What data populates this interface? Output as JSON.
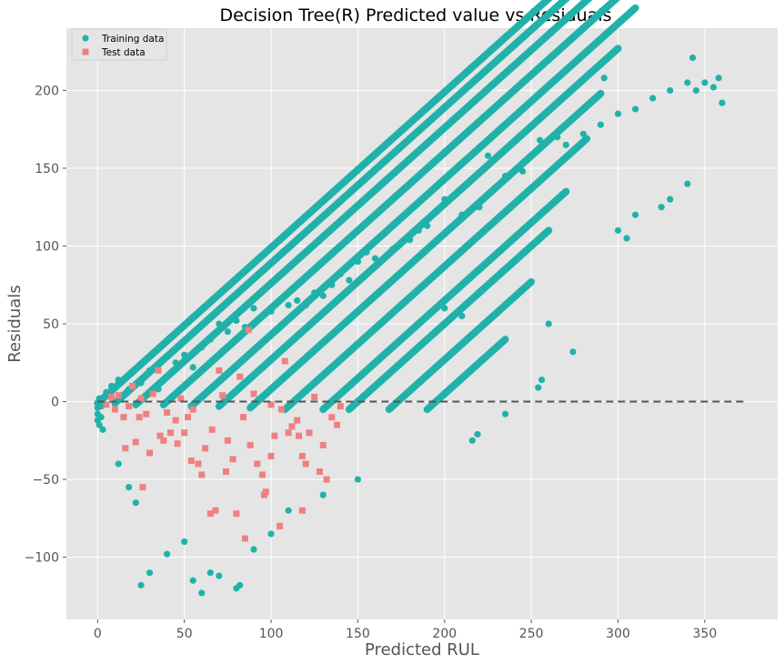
{
  "chart_data": {
    "type": "scatter",
    "title": "Decision Tree(R) Predicted value vs Residuals",
    "xlabel": "Predicted RUL",
    "ylabel": "Residuals",
    "xlim": [
      -18,
      392
    ],
    "ylim": [
      -140,
      240
    ],
    "xticks": [
      0,
      50,
      100,
      150,
      200,
      250,
      300,
      350
    ],
    "yticks": [
      -100,
      -50,
      0,
      50,
      100,
      150,
      200
    ],
    "ytick_labels": [
      "−100",
      "−50",
      "0",
      "50",
      "100",
      "150",
      "200"
    ],
    "grid": true,
    "legend_position": "top-left",
    "reference_line": {
      "y": 0,
      "x_range": [
        0,
        373
      ],
      "style": "dashed",
      "color": "#555555"
    },
    "series": [
      {
        "name": "Training data",
        "marker": "circle",
        "color": "#20b2aa",
        "bands": [
          {
            "offset": -1,
            "x_start": 0,
            "x_end": 356
          },
          {
            "offset": -11,
            "x_start": 10,
            "x_end": 344
          },
          {
            "offset": -24,
            "x_start": 22,
            "x_end": 333
          },
          {
            "offset": -40,
            "x_start": 38,
            "x_end": 323
          },
          {
            "offset": -57,
            "x_start": 54,
            "x_end": 310
          },
          {
            "offset": -73,
            "x_start": 70,
            "x_end": 300
          },
          {
            "offset": -92,
            "x_start": 88,
            "x_end": 290
          },
          {
            "offset": -113,
            "x_start": 108,
            "x_end": 282
          },
          {
            "offset": -135,
            "x_start": 130,
            "x_end": 270
          },
          {
            "offset": -150,
            "x_start": 145,
            "x_end": 260
          },
          {
            "offset": -173,
            "x_start": 168,
            "x_end": 250
          },
          {
            "offset": -195,
            "x_start": 190,
            "x_end": 235
          }
        ],
        "points": [
          [
            0,
            -8
          ],
          [
            0,
            -4
          ],
          [
            0,
            -12
          ],
          [
            1,
            -15
          ],
          [
            2,
            -3
          ],
          [
            3,
            -18
          ],
          [
            1,
            2
          ],
          [
            2,
            -10
          ],
          [
            5,
            6
          ],
          [
            8,
            10
          ],
          [
            12,
            14
          ],
          [
            18,
            8
          ],
          [
            25,
            12
          ],
          [
            30,
            20
          ],
          [
            35,
            8
          ],
          [
            40,
            16
          ],
          [
            45,
            25
          ],
          [
            50,
            30
          ],
          [
            55,
            22
          ],
          [
            60,
            35
          ],
          [
            65,
            40
          ],
          [
            70,
            50
          ],
          [
            75,
            45
          ],
          [
            80,
            52
          ],
          [
            85,
            48
          ],
          [
            90,
            60
          ],
          [
            95,
            55
          ],
          [
            100,
            58
          ],
          [
            110,
            62
          ],
          [
            115,
            65
          ],
          [
            120,
            62
          ],
          [
            125,
            70
          ],
          [
            130,
            68
          ],
          [
            135,
            75
          ],
          [
            140,
            82
          ],
          [
            145,
            78
          ],
          [
            150,
            90
          ],
          [
            155,
            96
          ],
          [
            160,
            92
          ],
          [
            170,
            98
          ],
          [
            175,
            102
          ],
          [
            180,
            104
          ],
          [
            185,
            110
          ],
          [
            190,
            113
          ],
          [
            200,
            130
          ],
          [
            210,
            120
          ],
          [
            220,
            125
          ],
          [
            225,
            158
          ],
          [
            235,
            145
          ],
          [
            245,
            148
          ],
          [
            255,
            168
          ],
          [
            265,
            170
          ],
          [
            270,
            165
          ],
          [
            280,
            172
          ],
          [
            290,
            178
          ],
          [
            300,
            185
          ],
          [
            310,
            188
          ],
          [
            320,
            195
          ],
          [
            330,
            200
          ],
          [
            340,
            205
          ],
          [
            343,
            221
          ],
          [
            345,
            200
          ],
          [
            350,
            205
          ],
          [
            355,
            202
          ],
          [
            358,
            208
          ],
          [
            360,
            192
          ],
          [
            292,
            208
          ],
          [
            25,
            -118
          ],
          [
            30,
            -110
          ],
          [
            40,
            -98
          ],
          [
            50,
            -90
          ],
          [
            55,
            -115
          ],
          [
            60,
            -123
          ],
          [
            65,
            -110
          ],
          [
            70,
            -112
          ],
          [
            80,
            -120
          ],
          [
            82,
            -118
          ],
          [
            90,
            -95
          ],
          [
            100,
            -85
          ],
          [
            110,
            -70
          ],
          [
            130,
            -60
          ],
          [
            150,
            -50
          ],
          [
            235,
            -8
          ],
          [
            254,
            9
          ],
          [
            256,
            14
          ],
          [
            274,
            32
          ],
          [
            216,
            -25
          ],
          [
            219,
            -21
          ],
          [
            340,
            140
          ],
          [
            330,
            130
          ],
          [
            325,
            125
          ],
          [
            310,
            120
          ],
          [
            300,
            110
          ],
          [
            305,
            105
          ],
          [
            200,
            60
          ],
          [
            210,
            55
          ],
          [
            260,
            50
          ],
          [
            12,
            -40
          ],
          [
            18,
            -55
          ],
          [
            22,
            -65
          ]
        ]
      },
      {
        "name": "Test data",
        "marker": "square",
        "color": "#f08080",
        "points": [
          [
            5,
            -2
          ],
          [
            8,
            3
          ],
          [
            10,
            -5
          ],
          [
            12,
            4
          ],
          [
            15,
            -10
          ],
          [
            18,
            -3
          ],
          [
            20,
            10
          ],
          [
            22,
            -26
          ],
          [
            25,
            2
          ],
          [
            28,
            -8
          ],
          [
            30,
            -33
          ],
          [
            32,
            5
          ],
          [
            35,
            20
          ],
          [
            38,
            -25
          ],
          [
            40,
            -7
          ],
          [
            45,
            -12
          ],
          [
            48,
            2
          ],
          [
            50,
            -20
          ],
          [
            52,
            -10
          ],
          [
            55,
            -5
          ],
          [
            58,
            -40
          ],
          [
            60,
            -47
          ],
          [
            62,
            -30
          ],
          [
            65,
            -72
          ],
          [
            68,
            -70
          ],
          [
            70,
            20
          ],
          [
            72,
            4
          ],
          [
            75,
            -25
          ],
          [
            78,
            -37
          ],
          [
            80,
            -72
          ],
          [
            82,
            16
          ],
          [
            85,
            -88
          ],
          [
            87,
            46
          ],
          [
            90,
            5
          ],
          [
            92,
            -40
          ],
          [
            95,
            -47
          ],
          [
            97,
            -58
          ],
          [
            100,
            -2
          ],
          [
            102,
            -22
          ],
          [
            105,
            -80
          ],
          [
            108,
            26
          ],
          [
            110,
            -20
          ],
          [
            112,
            -16
          ],
          [
            115,
            -12
          ],
          [
            118,
            -35
          ],
          [
            120,
            -40
          ],
          [
            122,
            -20
          ],
          [
            125,
            3
          ],
          [
            128,
            -45
          ],
          [
            130,
            -28
          ],
          [
            135,
            -10
          ],
          [
            138,
            -15
          ],
          [
            140,
            -3
          ],
          [
            42,
            -20
          ],
          [
            46,
            -27
          ],
          [
            54,
            -38
          ],
          [
            36,
            -22
          ],
          [
            26,
            -55
          ],
          [
            16,
            -30
          ],
          [
            24,
            -10
          ],
          [
            100,
            -35
          ],
          [
            96,
            -60
          ],
          [
            88,
            -28
          ],
          [
            74,
            -45
          ],
          [
            66,
            -18
          ],
          [
            84,
            -10
          ],
          [
            118,
            -70
          ],
          [
            116,
            -22
          ],
          [
            132,
            -50
          ],
          [
            106,
            -5
          ]
        ]
      }
    ]
  }
}
